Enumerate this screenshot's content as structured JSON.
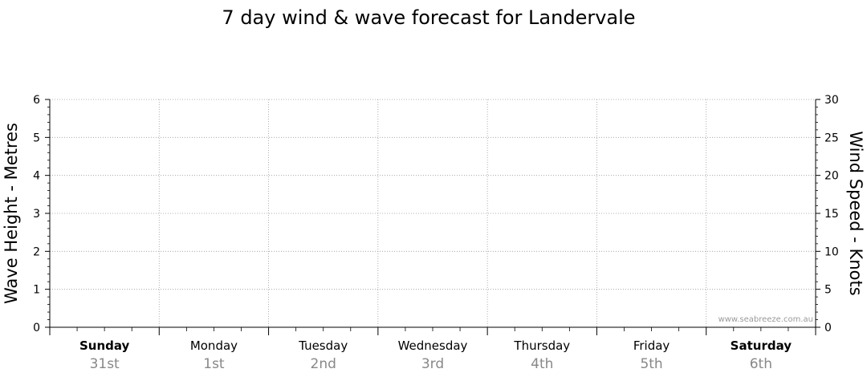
{
  "chart_data": {
    "type": "line",
    "title": "7 day wind & wave forecast for Landervale",
    "y_left_label": "Wave Height - Metres",
    "y_right_label": "Wind Speed - Knots",
    "y_left_range": [
      0,
      6
    ],
    "y_right_range": [
      0,
      30
    ],
    "y_left_ticks": [
      "0",
      "1",
      "2",
      "3",
      "4",
      "5",
      "6"
    ],
    "y_right_ticks": [
      "0",
      "5",
      "10",
      "15",
      "20",
      "25",
      "30"
    ],
    "days": [
      {
        "day": "Sunday",
        "date": "31st",
        "bold": true
      },
      {
        "day": "Monday",
        "date": "1st",
        "bold": false
      },
      {
        "day": "Tuesday",
        "date": "2nd",
        "bold": false
      },
      {
        "day": "Wednesday",
        "date": "3rd",
        "bold": false
      },
      {
        "day": "Thursday",
        "date": "4th",
        "bold": false
      },
      {
        "day": "Friday",
        "date": "5th",
        "bold": false
      },
      {
        "day": "Saturday",
        "date": "6th",
        "bold": true
      }
    ],
    "series": [],
    "grid": true,
    "watermark": "www.seabreeze.com.au"
  },
  "colors": {
    "axis": "#000000",
    "grid": "#9a9a9a",
    "date_text": "#888888"
  }
}
